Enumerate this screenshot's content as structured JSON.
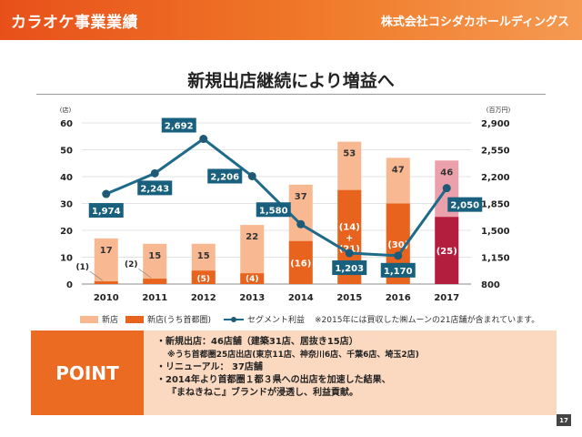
{
  "header": {
    "title": "カラオケ事業業績",
    "company": "株式会社コシダカホールディングス"
  },
  "main_title": "新規出店継続により増益へ",
  "chart_data": {
    "type": "bar",
    "categories": [
      "2010",
      "2011",
      "2012",
      "2013",
      "2014",
      "2015",
      "2016",
      "2017"
    ],
    "left_axis": {
      "unit_label": "(店)",
      "ylim": [
        0,
        60
      ],
      "ticks": [
        "0",
        "10",
        "20",
        "30",
        "40",
        "50",
        "60"
      ]
    },
    "right_axis": {
      "unit_label": "(百万円)",
      "ylim": [
        800,
        2900
      ],
      "ticks": [
        "800",
        "1,150",
        "1,500",
        "1,850",
        "2,200",
        "2,550",
        "2,900"
      ]
    },
    "series": [
      {
        "name": "新店",
        "axis": "left",
        "kind": "bar",
        "values": [
          17,
          15,
          15,
          22,
          37,
          53,
          47,
          46
        ],
        "labels": [
          "17",
          "15",
          "15",
          "22",
          "37",
          "53",
          "47",
          "46"
        ]
      },
      {
        "name": "新店(うち首都圏)",
        "axis": "left",
        "kind": "bar",
        "values": [
          1,
          2,
          5,
          4,
          16,
          35,
          30,
          25
        ],
        "labels": [
          "(1)",
          "(2)",
          "(5)",
          "(4)",
          "(16)",
          "(14)\n+\n(21)",
          "(30)",
          "(25)"
        ]
      },
      {
        "name": "セグメント利益",
        "axis": "right",
        "kind": "line",
        "values": [
          1974,
          2243,
          2692,
          2206,
          1580,
          1203,
          1170,
          2050
        ],
        "labels": [
          "1,974",
          "2,243",
          "2,692",
          "2,206",
          "1,580",
          "1,203",
          "1,170",
          "2,050"
        ]
      }
    ],
    "colors": {
      "new_store": "#f8b891",
      "new_store_2017": "#eba1ab",
      "metro": "#e8641e",
      "metro_2017": "#b41e3e",
      "profit_line": "#1e6a8a",
      "profit_marker": "#1e5a76",
      "label_box": "#18607e"
    }
  },
  "legend": {
    "new_store": "新店",
    "metro": "新店(うち首都圏)",
    "profit": "セグメント利益",
    "note": "※2015年には買収した㈱ムーンの21店舗が含まれています。"
  },
  "point": {
    "label": "POINT",
    "lines": [
      "・新規出店：46店舗（建築31店、居抜き15店）",
      "※うち首都圏25店出店(東京11店、神奈川6店、千葉6店、埼玉2店)",
      "・リニューアル： 37店舗",
      "・2014年より首都圏１都３県への出店を加速した結果、",
      "『まねきねこ』ブランドが浸透し、利益貢献。"
    ]
  },
  "page_number": "17"
}
